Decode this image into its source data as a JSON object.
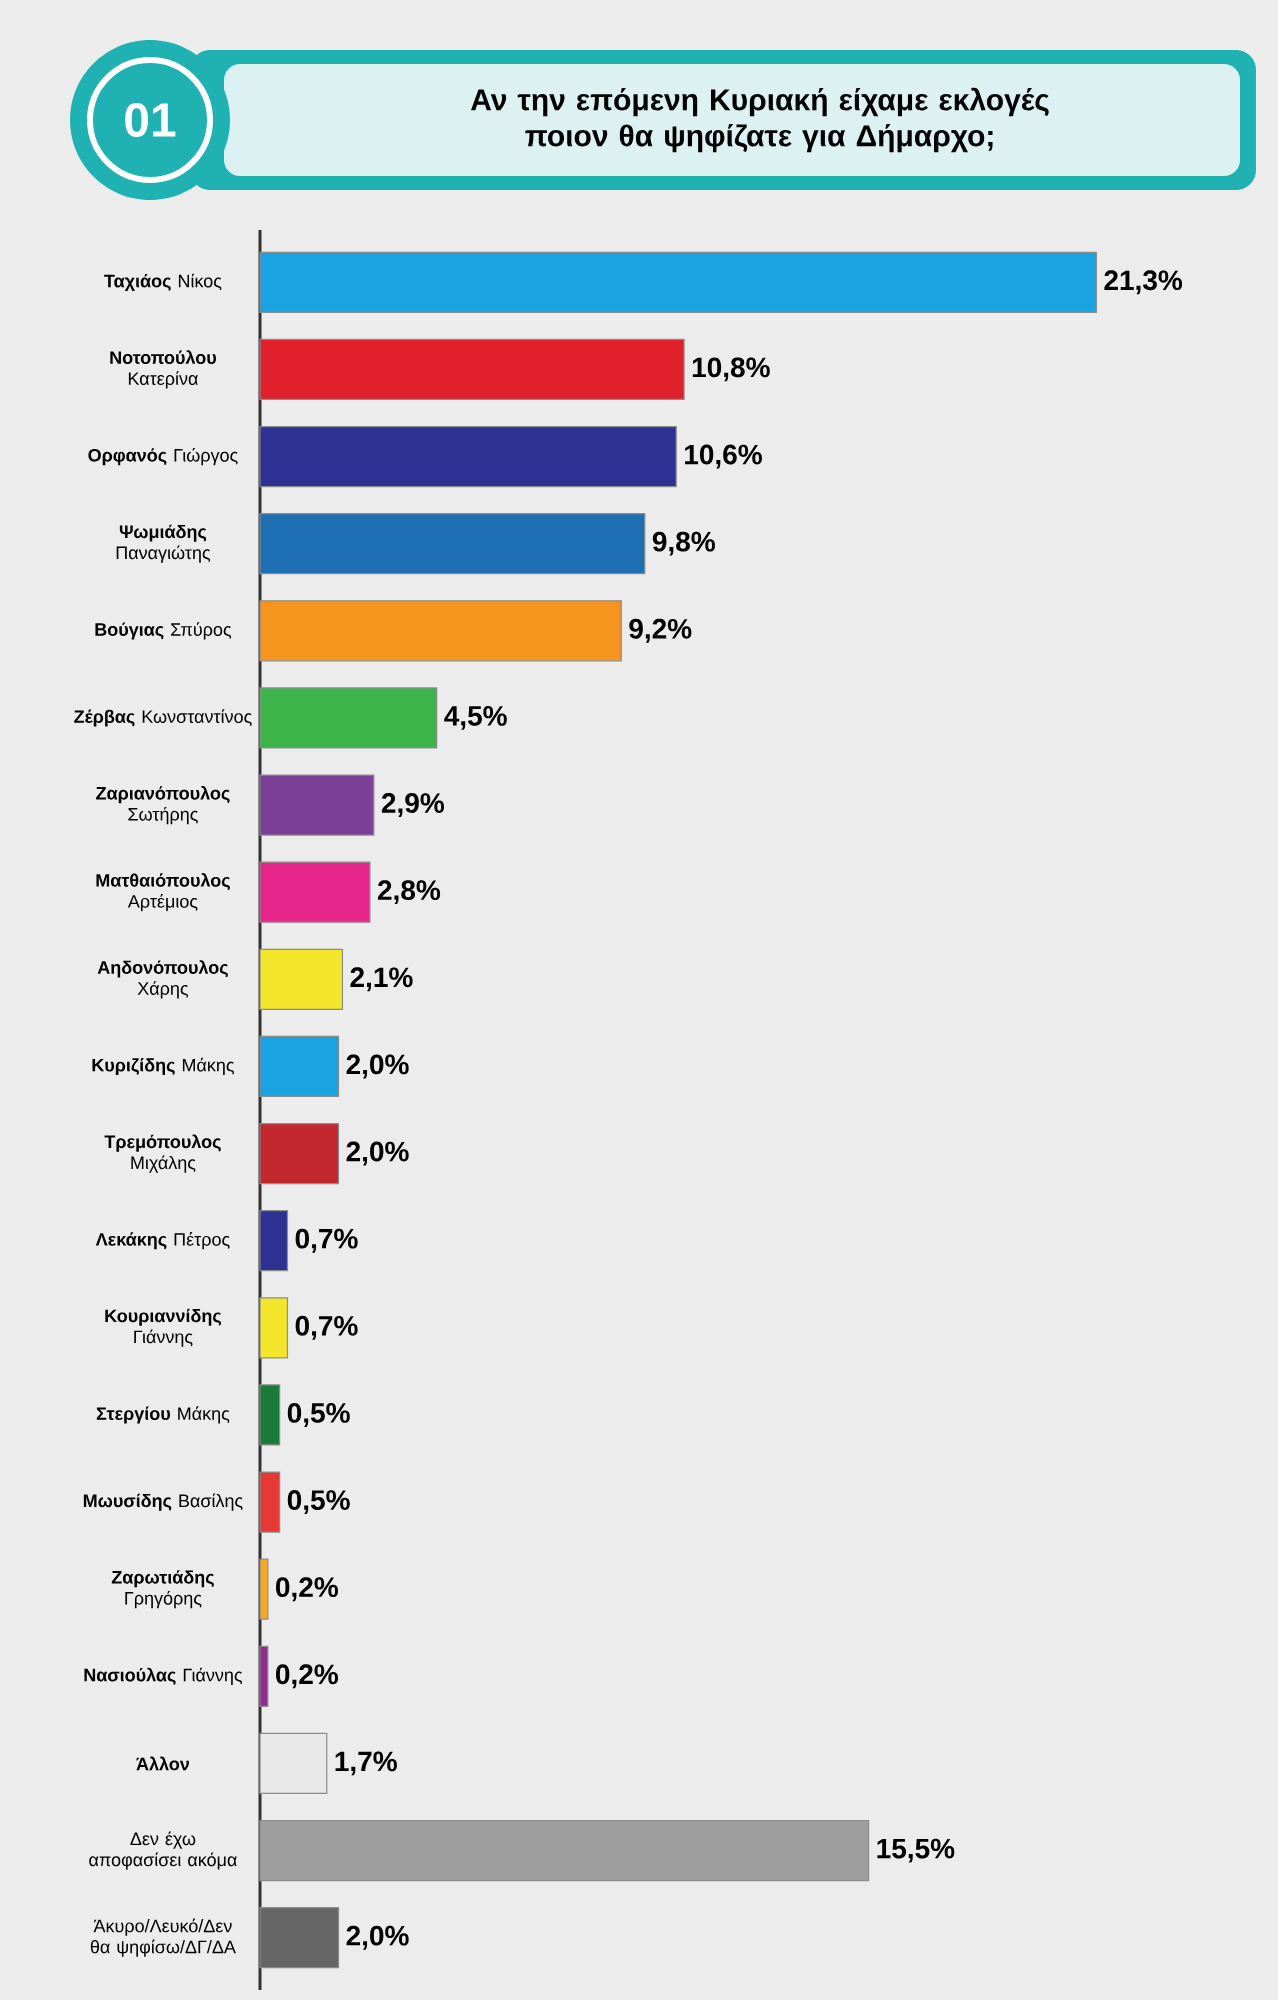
{
  "chart_data": {
    "type": "bar",
    "orientation": "horizontal",
    "title": "Αν την επόμενη Κυριακή είχαμε εκλογές ποιον θα ψηφίζατε για Δήμαρχο;",
    "annotations": [
      "01"
    ],
    "categories": [
      "**Ταχιάος** Νίκος",
      "**Νοτοπούλου** Κατερίνα",
      "**Ορφανός** Γιώργος",
      "**Ψωμιάδης** Παναγιώτης",
      "**Βούγιας** Σπύρος",
      "**Ζέρβας** Κωνσταντίνος",
      "**Ζαριανόπουλος** Σωτήρης",
      "**Ματθαιόπουλος** Αρτέμιος",
      "**Αηδονόπουλος** Χάρης",
      "**Κυριζίδης** Μάκης",
      "**Τρεμόπουλος** Μιχάλης",
      "**Λεκάκης** Πέτρος",
      "**Κουριαννίδης** Γιάννης",
      "**Στεργίου** Μάκης",
      "**Μωυσίδης** Βασίλης",
      "**Ζαρωτιάδης** Γρηγόρης",
      "**Νασιούλας** Γιάννης",
      "**Άλλον**",
      "Δεν έχω αποφασίσει ακόμα",
      "Άκυρο/Λευκό/Δεν θα ψηφίσω/ΔΓ/ΔΑ"
    ],
    "values": [
      21.3,
      10.8,
      10.6,
      9.8,
      9.2,
      4.5,
      2.9,
      2.8,
      2.1,
      2.0,
      2.0,
      0.7,
      0.7,
      0.5,
      0.5,
      0.2,
      0.2,
      1.7,
      15.5,
      2.0
    ],
    "value_labels": [
      "21,3%",
      "10,8%",
      "10,6%",
      "9,8%",
      "9,2%",
      "4,5%",
      "2,9%",
      "2,8%",
      "2,1%",
      "2,0%",
      "2,0%",
      "0,7%",
      "0,7%",
      "0,5%",
      "0,5%",
      "0,2%",
      "0,2%",
      "1,7%",
      "15,5%",
      "2,0%"
    ],
    "colors": [
      "#1aa3e0",
      "#e0202a",
      "#2e3192",
      "#1f6fb5",
      "#f7941d",
      "#3db54a",
      "#7b3f98",
      "#e6268a",
      "#f2e52a",
      "#1aa3e0",
      "#c1272d",
      "#2e3192",
      "#f2e52a",
      "#1a7a3a",
      "#e53935",
      "#f7a823",
      "#8e2c8e",
      "#e8e8e8",
      "#9e9e9e",
      "#666666"
    ],
    "tick_labels": "y"
  }
}
